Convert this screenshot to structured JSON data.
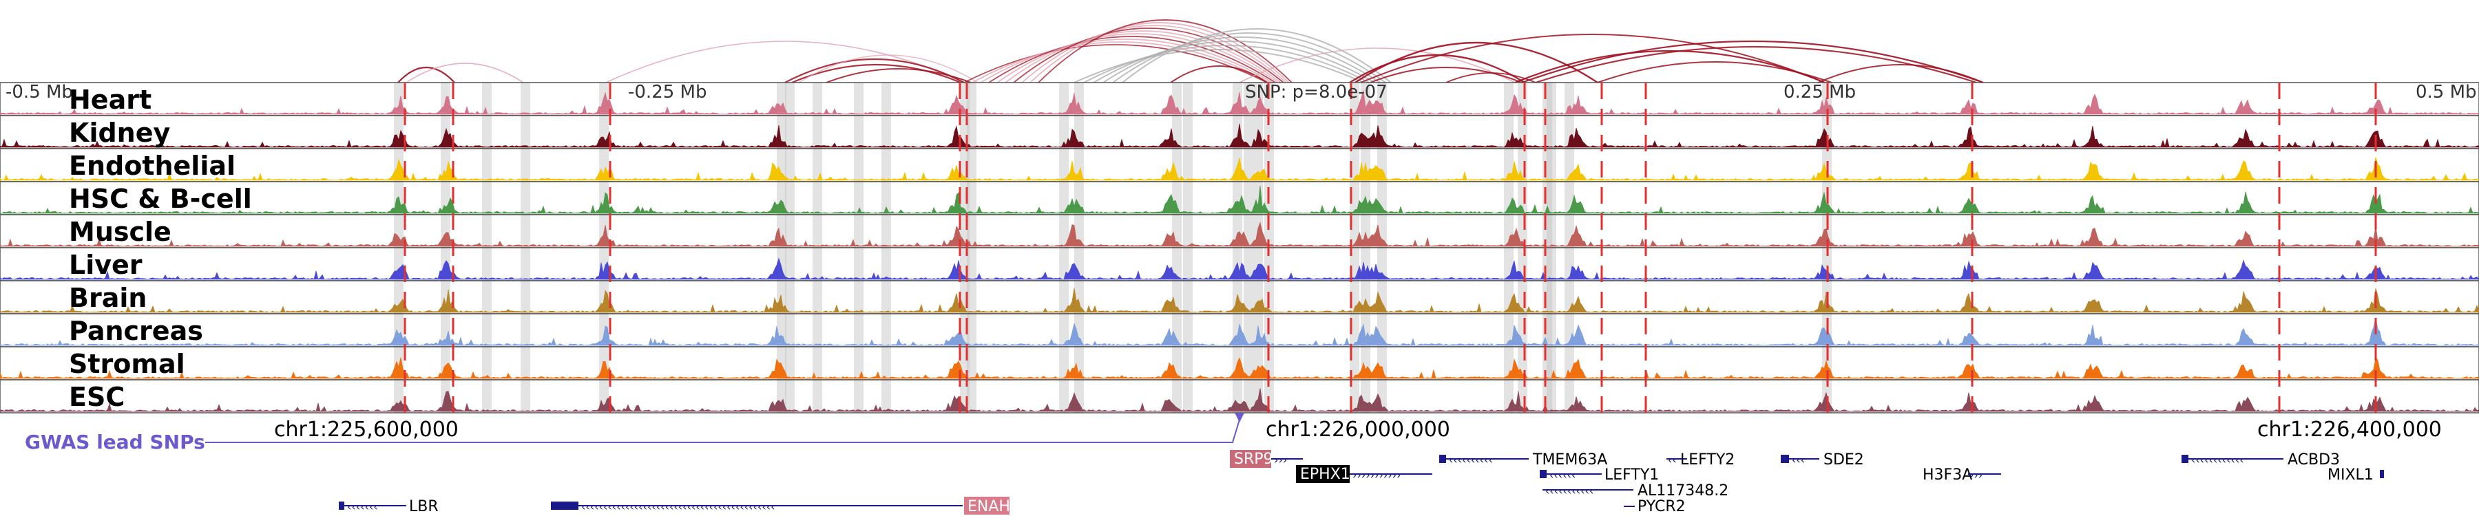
{
  "scale_labels": [
    "-0.5 Mb",
    "-0.25 Mb",
    "SNP: p=8.0e-07",
    "0.25 Mb",
    "0.5 Mb"
  ],
  "tracks": [
    {
      "name": "Heart",
      "color": "#d4748a"
    },
    {
      "name": "Kidney",
      "color": "#6b0f1a"
    },
    {
      "name": "Endothelial",
      "color": "#f5c400"
    },
    {
      "name": "HSC & B-cell",
      "color": "#4a9a4a"
    },
    {
      "name": "Muscle",
      "color": "#c0605a"
    },
    {
      "name": "Liver",
      "color": "#4a4ad4"
    },
    {
      "name": "Brain",
      "color": "#b8862a"
    },
    {
      "name": "Pancreas",
      "color": "#7fa0dc"
    },
    {
      "name": "Stromal",
      "color": "#f07010"
    },
    {
      "name": "ESC",
      "color": "#8a4a5a"
    }
  ],
  "gwas_label": "GWAS lead SNPs",
  "coordinates": [
    "chr1:225,600,000",
    "chr1:226,000,000",
    "chr1:226,400,000"
  ],
  "genes": [
    {
      "name": "SRP9",
      "highlight": true,
      "highlight_color": "#c96a78"
    },
    {
      "name": "EPHX1",
      "highlight": true,
      "highlight_color": "#000000"
    },
    {
      "name": "TMEM63A",
      "highlight": false
    },
    {
      "name": "LEFTY1",
      "highlight": false
    },
    {
      "name": "AL117348.2",
      "highlight": false
    },
    {
      "name": "PYCR2",
      "highlight": false
    },
    {
      "name": "LEFTY2",
      "highlight": false
    },
    {
      "name": "SDE2",
      "highlight": false
    },
    {
      "name": "H3F3A",
      "highlight": false
    },
    {
      "name": "ACBD3",
      "highlight": false
    },
    {
      "name": "MIXL1",
      "highlight": false
    },
    {
      "name": "LBR",
      "highlight": false
    },
    {
      "name": "ENAH",
      "highlight": true,
      "highlight_color": "#d97a8a"
    }
  ],
  "colors": {
    "arc": "#a01020",
    "arc_light": "#e0a0b0",
    "snp_band": "#c0c0c0",
    "peak_line": "#e03030",
    "gene": "#1a1a8a",
    "gwas": "#6a5acd"
  }
}
